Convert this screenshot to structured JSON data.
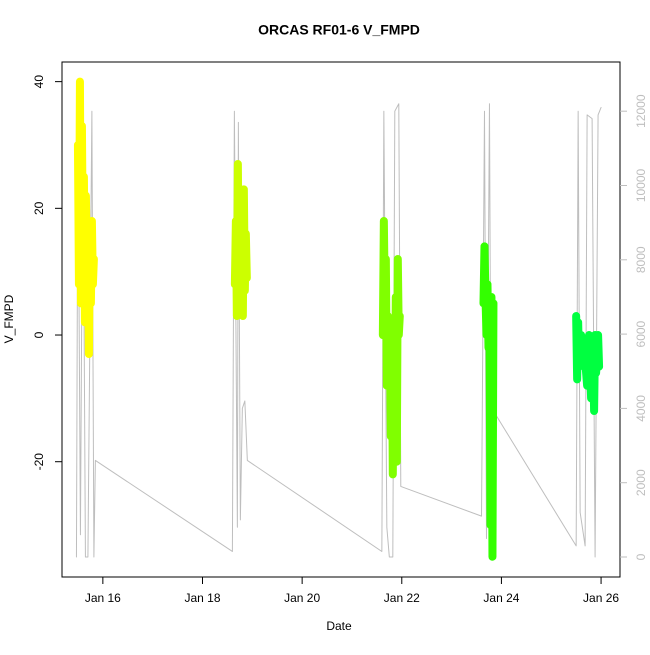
{
  "chart_data": {
    "type": "line",
    "title": "ORCAS RF01-6 V_FMPD",
    "x_label": "Date",
    "y_label": "V_FMPD",
    "xlim": [
      15.18,
      26.38
    ],
    "xticks": [
      {
        "value": 16,
        "label": "Jan 16"
      },
      {
        "value": 18,
        "label": "Jan 18"
      },
      {
        "value": 20,
        "label": "Jan 20"
      },
      {
        "value": 22,
        "label": "Jan 22"
      },
      {
        "value": 24,
        "label": "Jan 24"
      },
      {
        "value": 26,
        "label": "Jan 26"
      }
    ],
    "ylim": [
      -38.2,
      43.1
    ],
    "yticks": [
      -20,
      0,
      20,
      40
    ],
    "y2lim": [
      -538,
      13324
    ],
    "y2ticks": [
      0,
      2000,
      4000,
      6000,
      8000,
      10000,
      12000
    ],
    "y2_color": "#bebebe",
    "series": [
      {
        "axis": "y2",
        "color": "#bebebe",
        "width": 1,
        "x": [
          15.47,
          15.5,
          15.55,
          15.6,
          15.65,
          15.7,
          15.78,
          15.82,
          15.85,
          18.6,
          18.64,
          18.7,
          18.72,
          18.76,
          18.8,
          18.85,
          18.9,
          21.6,
          21.64,
          21.7,
          21.75,
          21.82,
          21.86,
          21.94,
          21.98,
          23.6,
          23.66,
          23.7,
          23.76,
          23.8,
          23.9,
          25.5,
          25.54,
          25.58,
          25.68,
          25.72,
          25.82,
          25.88,
          25.94,
          26.0
        ],
        "values": [
          0,
          11800,
          600,
          12000,
          0,
          0,
          12000,
          0,
          2600,
          150,
          12000,
          800,
          11700,
          1000,
          4000,
          4200,
          2600,
          150,
          12000,
          800,
          0,
          0,
          12000,
          12200,
          1900,
          1100,
          12000,
          500,
          12200,
          0,
          3800,
          300,
          12000,
          1200,
          300,
          11900,
          11800,
          0,
          11900,
          12100
        ]
      },
      {
        "color": "#ffff00",
        "width": 8,
        "x": [
          15.5,
          15.52,
          15.54,
          15.56,
          15.58,
          15.6,
          15.62,
          15.64,
          15.66,
          15.68,
          15.7,
          15.72,
          15.74,
          15.76,
          15.78,
          15.8,
          15.82
        ],
        "values": [
          30,
          8,
          40,
          5,
          33,
          12,
          25,
          2,
          22,
          10,
          18,
          -3,
          15,
          5,
          18,
          8,
          12
        ]
      },
      {
        "color": "#ccff00",
        "width": 8,
        "x": [
          18.65,
          18.67,
          18.69,
          18.71,
          18.73,
          18.75,
          18.77,
          18.79,
          18.81,
          18.83,
          18.85,
          18.87,
          18.89
        ],
        "values": [
          8,
          18,
          3,
          27,
          6,
          20,
          10,
          15,
          3,
          23,
          7,
          16,
          9
        ]
      },
      {
        "color": "#80ff00",
        "width": 8,
        "x": [
          21.62,
          21.64,
          21.66,
          21.68,
          21.7,
          21.72,
          21.74,
          21.76,
          21.78,
          21.8,
          21.82,
          21.84,
          21.86,
          21.88,
          21.9,
          21.92,
          21.94,
          21.96
        ],
        "values": [
          0,
          18,
          5,
          12,
          -8,
          3,
          -5,
          0,
          -16,
          2,
          -22,
          -2,
          -15,
          6,
          -20,
          12,
          0,
          3
        ]
      },
      {
        "color": "#33ff00",
        "width": 8,
        "x": [
          23.64,
          23.66,
          23.68,
          23.7,
          23.72,
          23.74,
          23.76,
          23.78,
          23.8,
          23.82,
          23.84
        ],
        "values": [
          5,
          14,
          6,
          0,
          8,
          -2,
          4,
          -30,
          6,
          -35,
          5
        ]
      },
      {
        "color": "#00ff40",
        "width": 8,
        "x": [
          25.5,
          25.52,
          25.54,
          25.56,
          25.6,
          25.64,
          25.68,
          25.72,
          25.76,
          25.8,
          25.84,
          25.86,
          25.88,
          25.9,
          25.92,
          25.94,
          25.96
        ],
        "values": [
          3,
          -7,
          2,
          -5,
          0,
          -3,
          -4,
          -8,
          0,
          -10,
          -2,
          -12,
          0,
          -6,
          -3,
          0,
          -5
        ]
      }
    ]
  }
}
